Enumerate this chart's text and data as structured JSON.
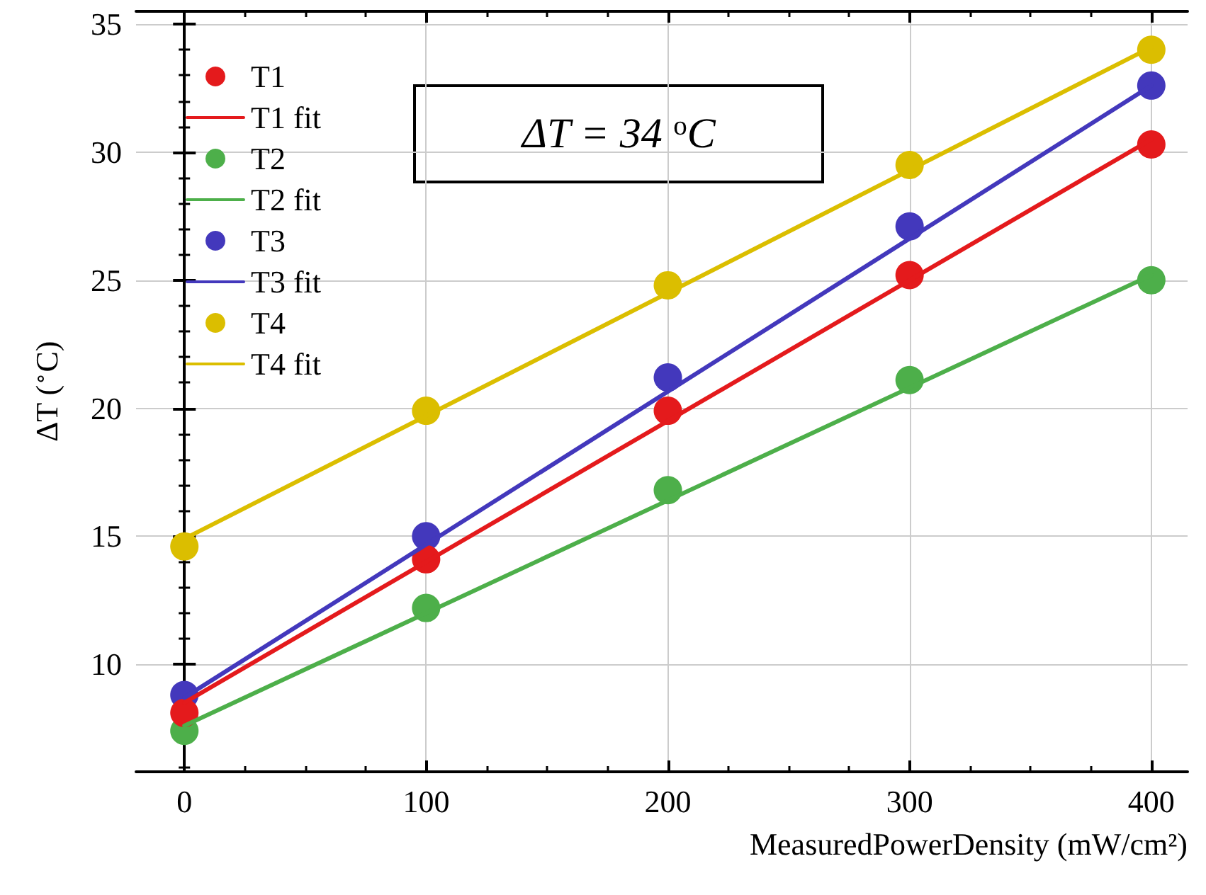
{
  "chart_data": {
    "type": "scatter",
    "xlabel": "MeasuredPowerDensity (mW/cm²)",
    "ylabel": "ΔT ($^{∘}$C)",
    "annotations": [
      "ΔT = 34 $^{o}$C"
    ],
    "xlim": [
      -20,
      415
    ],
    "xticks": [
      0,
      100,
      200,
      300,
      400
    ],
    "ylim": [
      5.8,
      35.5
    ],
    "yticks": [
      10,
      15,
      20,
      25,
      30,
      35
    ],
    "grid": true,
    "legend": "top left",
    "line_style": "solid",
    "series": [
      {
        "name": "T1",
        "marker": "circle",
        "color": "#e41a1c",
        "x": [
          0,
          100,
          200,
          300,
          400
        ],
        "values": [
          8.1,
          14.1,
          19.9,
          25.2,
          30.3
        ]
      },
      {
        "name": "T1 fit",
        "type": "line",
        "marker": "none",
        "color": "#e41a1c",
        "x": [
          0,
          400
        ],
        "values": [
          8.5,
          30.5
        ]
      },
      {
        "name": "T2",
        "marker": "circle",
        "color": "#4daf4a",
        "x": [
          0,
          100,
          200,
          300,
          400
        ],
        "values": [
          7.4,
          12.2,
          16.8,
          21.1,
          25.0
        ]
      },
      {
        "name": "T2 fit",
        "type": "line",
        "marker": "none",
        "color": "#4daf4a",
        "x": [
          0,
          400
        ],
        "values": [
          7.6,
          25.2
        ]
      },
      {
        "name": "T3",
        "marker": "circle",
        "color": "#4338bc",
        "x": [
          0,
          100,
          200,
          300,
          400
        ],
        "values": [
          8.8,
          15.0,
          21.2,
          27.1,
          32.6
        ]
      },
      {
        "name": "T3 fit",
        "type": "line",
        "marker": "none",
        "color": "#4338bc",
        "x": [
          0,
          400
        ],
        "values": [
          8.7,
          32.6
        ]
      },
      {
        "name": "T4",
        "marker": "circle",
        "color": "#dbbe00",
        "x": [
          0,
          100,
          200,
          300,
          400
        ],
        "values": [
          14.6,
          19.9,
          24.8,
          29.5,
          34.0
        ]
      },
      {
        "name": "T4 fit",
        "type": "line",
        "marker": "none",
        "color": "#dbbe00",
        "x": [
          0,
          400
        ],
        "values": [
          14.9,
          34.1
        ]
      }
    ]
  }
}
